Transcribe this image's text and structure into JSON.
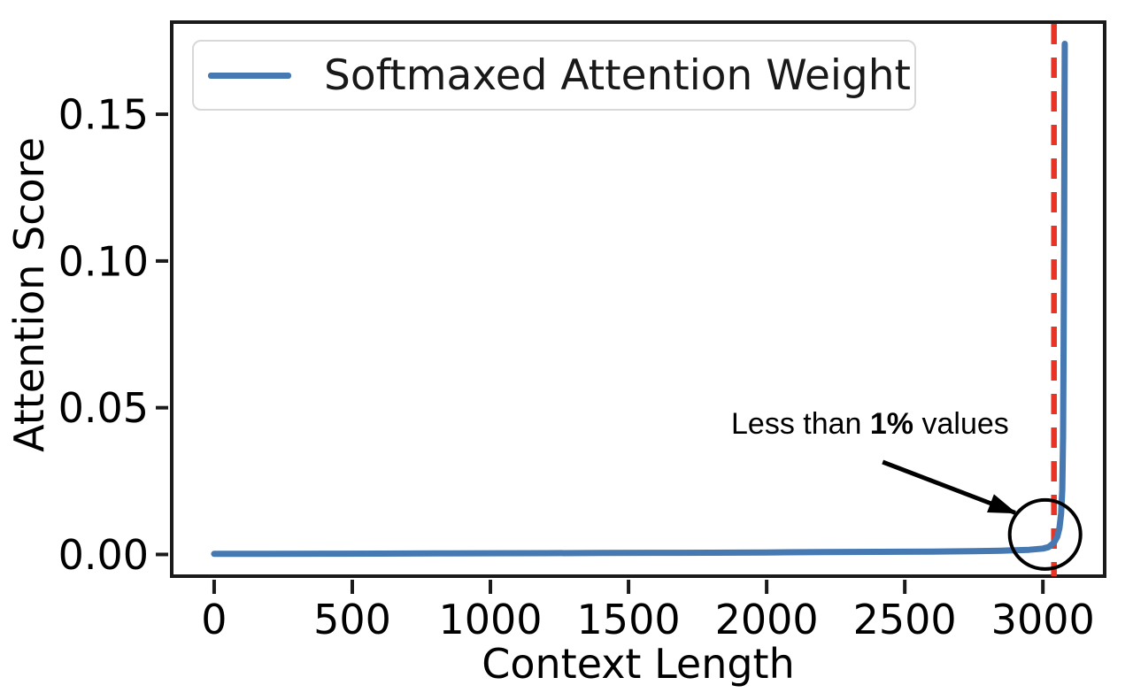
{
  "chart_data": {
    "type": "line",
    "title": "",
    "xlabel": "Context Length",
    "ylabel": "Attention Score",
    "xlim": [
      -160,
      3230
    ],
    "ylim": [
      -0.008,
      0.182
    ],
    "xticks": [
      0,
      500,
      1000,
      1500,
      2000,
      2500,
      3000
    ],
    "xtick_labels": [
      "0",
      "500",
      "1000",
      "1500",
      "2000",
      "2500",
      "3000"
    ],
    "yticks": [
      0,
      0.05,
      0.1,
      0.15
    ],
    "ytick_labels": [
      "0.00",
      "0.05",
      "0.10",
      "0.15"
    ],
    "grid": false,
    "legend": {
      "position": "upper-left",
      "entries": [
        {
          "label": "Softmaxed Attention Weight",
          "color": "#4678b2",
          "style": "solid"
        }
      ]
    },
    "series": [
      {
        "name": "Softmaxed Attention Weight",
        "color": "#4678b2",
        "line_width": 7,
        "points": [
          [
            0,
            0.0002
          ],
          [
            200,
            0.0002
          ],
          [
            400,
            0.00025
          ],
          [
            600,
            0.0003
          ],
          [
            800,
            0.00035
          ],
          [
            1000,
            0.0004
          ],
          [
            1200,
            0.00045
          ],
          [
            1400,
            0.0005
          ],
          [
            1600,
            0.00055
          ],
          [
            1800,
            0.0006
          ],
          [
            2000,
            0.0007
          ],
          [
            2200,
            0.0008
          ],
          [
            2400,
            0.0009
          ],
          [
            2600,
            0.001
          ],
          [
            2750,
            0.0011
          ],
          [
            2850,
            0.0013
          ],
          [
            2950,
            0.0016
          ],
          [
            3000,
            0.002
          ],
          [
            3020,
            0.0025
          ],
          [
            3040,
            0.004
          ],
          [
            3052,
            0.006
          ],
          [
            3060,
            0.009
          ],
          [
            3066,
            0.014
          ],
          [
            3070,
            0.022
          ],
          [
            3073,
            0.04
          ],
          [
            3075,
            0.07
          ],
          [
            3077,
            0.11
          ],
          [
            3078,
            0.15
          ],
          [
            3079,
            0.174
          ]
        ]
      }
    ],
    "vline": {
      "x": 3040,
      "color": "#e93425",
      "style": "dashed",
      "width": 6.5
    },
    "annotation": {
      "text": "Less than 1% values",
      "prefix": "Less than ",
      "bold": "1%",
      "suffix": " values",
      "arrow_from_data": [
        2420,
        0.0315
      ],
      "arrow_to_data": [
        2900,
        0.0142
      ],
      "circle_center_data": [
        3008,
        0.0068
      ],
      "circle_radius_px": [
        40,
        39
      ]
    }
  },
  "colors": {
    "axis": "#1a1a1a",
    "line": "#4678b2",
    "vline": "#e93425",
    "annotation_text": "#000000",
    "legend_border": "#d8d8d8",
    "legend_bg": "#ffffff",
    "background": "#ffffff"
  }
}
